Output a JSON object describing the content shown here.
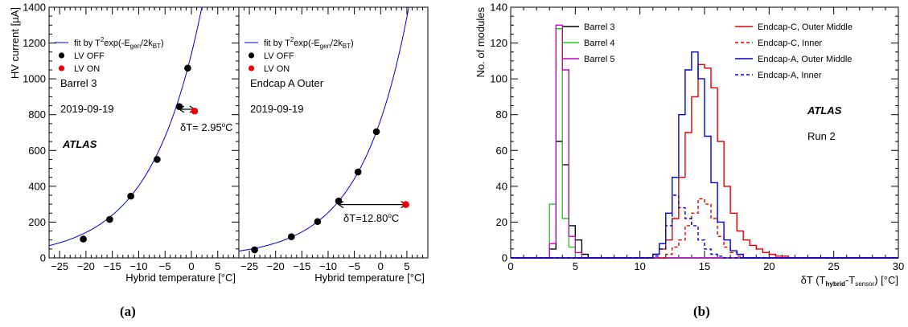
{
  "chart_data": [
    {
      "type": "scatter",
      "panel": "Barrel 3",
      "ylabel": "HV current [µA]",
      "xlabel": "Hybrid temperature [°C]",
      "xlim": [
        -27,
        9
      ],
      "ylim": [
        0,
        1400
      ],
      "x_ticks": [
        -25,
        -20,
        -15,
        -10,
        -5,
        0,
        5
      ],
      "y_ticks": [
        0,
        200,
        400,
        600,
        800,
        1000,
        1200,
        1400
      ],
      "legend": {
        "fit": "fit by T²exp(-E_gen/2k_BT)",
        "off": "LV OFF",
        "on": "LV ON"
      },
      "labels": {
        "region": "Barrel 3",
        "date": "2019-09-19",
        "experiment": "ATLAS",
        "shift": "δT= 2.95°C"
      },
      "lv_off": [
        {
          "x": -20.5,
          "y": 105
        },
        {
          "x": -15.5,
          "y": 215
        },
        {
          "x": -11.5,
          "y": 345
        },
        {
          "x": -6.5,
          "y": 550
        },
        {
          "x": -2.3,
          "y": 845
        },
        {
          "x": -0.7,
          "y": 1060
        }
      ],
      "lv_on": [
        {
          "x": 0.6,
          "y": 820
        }
      ],
      "arrow": {
        "from": -2.3,
        "to": 0.6,
        "y": 830
      },
      "fit": {
        "a": 1060,
        "b": 0.1041,
        "x0": -0.7
      }
    },
    {
      "type": "scatter",
      "panel": "Endcap A Outer",
      "xlabel": "Hybrid temperature [°C]",
      "xlim": [
        -27,
        9
      ],
      "ylim": [
        0,
        1400
      ],
      "x_ticks": [
        -25,
        -20,
        -15,
        -10,
        -5,
        0,
        5
      ],
      "legend": {
        "fit": "fit by T²exp(-E_gen/2k_BT)",
        "off": "LV OFF",
        "on": "LV ON"
      },
      "labels": {
        "region": "Endcap A Outer",
        "date": "2019-09-19",
        "shift": "δT=12.80°C"
      },
      "lv_off": [
        {
          "x": -24,
          "y": 45
        },
        {
          "x": -17,
          "y": 118
        },
        {
          "x": -12,
          "y": 203
        },
        {
          "x": -8,
          "y": 318
        },
        {
          "x": -4.3,
          "y": 480
        },
        {
          "x": -0.8,
          "y": 705
        }
      ],
      "lv_on": [
        {
          "x": 4.8,
          "y": 298
        }
      ],
      "arrow": {
        "from": -8,
        "to": 4.8,
        "y": 298
      },
      "fit": {
        "a": 705,
        "b": 0.1113,
        "x0": -0.8
      }
    },
    {
      "type": "histogram",
      "ylabel": "No. of modules",
      "xlabel": "δT (T_hybrid-T_sensor) [°C]",
      "xlim": [
        0,
        30
      ],
      "ylim": [
        0,
        140
      ],
      "x_ticks": [
        0,
        5,
        10,
        15,
        20,
        25,
        30
      ],
      "y_ticks": [
        0,
        20,
        40,
        60,
        80,
        100,
        120,
        140
      ],
      "labels": {
        "experiment": "ATLAS",
        "run": "Run 2"
      },
      "bin_width": 0.5,
      "series": [
        {
          "name": "Barrel 3",
          "color": "#000000",
          "dash": false,
          "x_start": 3.0,
          "counts": [
            5,
            65,
            52,
            18,
            10,
            2,
            0
          ]
        },
        {
          "name": "Barrel 4",
          "color": "#22cc22",
          "dash": false,
          "x_start": 3.0,
          "counts": [
            30,
            128,
            22,
            6,
            0
          ]
        },
        {
          "name": "Barrel 5",
          "color": "#cc00cc",
          "dash": false,
          "x_start": 3.0,
          "counts": [
            8,
            130,
            105,
            12,
            3,
            0
          ]
        },
        {
          "name": "Endcap-C, Outer Middle",
          "color": "#dd0000",
          "dash": false,
          "x_start": 11.0,
          "counts": [
            2,
            5,
            10,
            22,
            45,
            70,
            90,
            108,
            106,
            95,
            65,
            40,
            25,
            15,
            10,
            7,
            5,
            3,
            2,
            1,
            1,
            0
          ]
        },
        {
          "name": "Endcap-C, Inner",
          "color": "#dd0000",
          "dash": true,
          "x_start": 12.0,
          "counts": [
            2,
            6,
            10,
            18,
            25,
            33,
            30,
            22,
            12,
            6,
            3,
            1,
            0
          ]
        },
        {
          "name": "Endcap-A, Outer Middle",
          "color": "#0000cc",
          "dash": false,
          "x_start": 11.0,
          "counts": [
            2,
            8,
            25,
            45,
            80,
            105,
            115,
            100,
            68,
            42,
            20,
            10,
            4,
            2,
            0
          ]
        },
        {
          "name": "Endcap-A, Inner",
          "color": "#0000cc",
          "dash": true,
          "x_start": 11.0,
          "counts": [
            1,
            5,
            18,
            35,
            28,
            22,
            18,
            10,
            5,
            2,
            1,
            0
          ]
        }
      ]
    }
  ],
  "captions": {
    "a": "(a)",
    "b": "(b)"
  }
}
